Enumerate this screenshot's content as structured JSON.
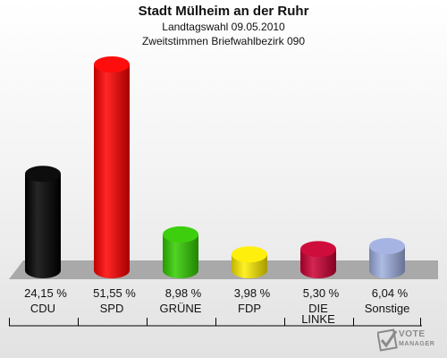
{
  "title": "Stadt Mülheim an der Ruhr",
  "subtitle1": "Landtagswahl 09.05.2010",
  "subtitle2": "Zweitstimmen Briefwahlbezirk 090",
  "watermark": {
    "line1": "VOTE",
    "line2": "MANAGER"
  },
  "chart_data": {
    "type": "bar",
    "categories": [
      "CDU",
      "SPD",
      "GRÜNE",
      "FDP",
      "DIE LINKE",
      "Sonstige"
    ],
    "category_lines": [
      [
        "CDU"
      ],
      [
        "SPD"
      ],
      [
        "GRÜNE"
      ],
      [
        "FDP"
      ],
      [
        "DIE",
        "LINKE"
      ],
      [
        "Sonstige"
      ]
    ],
    "values": [
      24.15,
      51.55,
      8.98,
      3.98,
      5.3,
      6.04
    ],
    "value_labels": [
      "24,15 %",
      "51,55 %",
      "8,98 %",
      "3,98 %",
      "5,30 %",
      "6,04 %"
    ],
    "colors": [
      "#000000",
      "#ff0000",
      "#33cc00",
      "#ffee00",
      "#cc0033",
      "#a0b0e0"
    ],
    "ylim": [
      0,
      51.55
    ],
    "grid": false,
    "legend": "none"
  }
}
